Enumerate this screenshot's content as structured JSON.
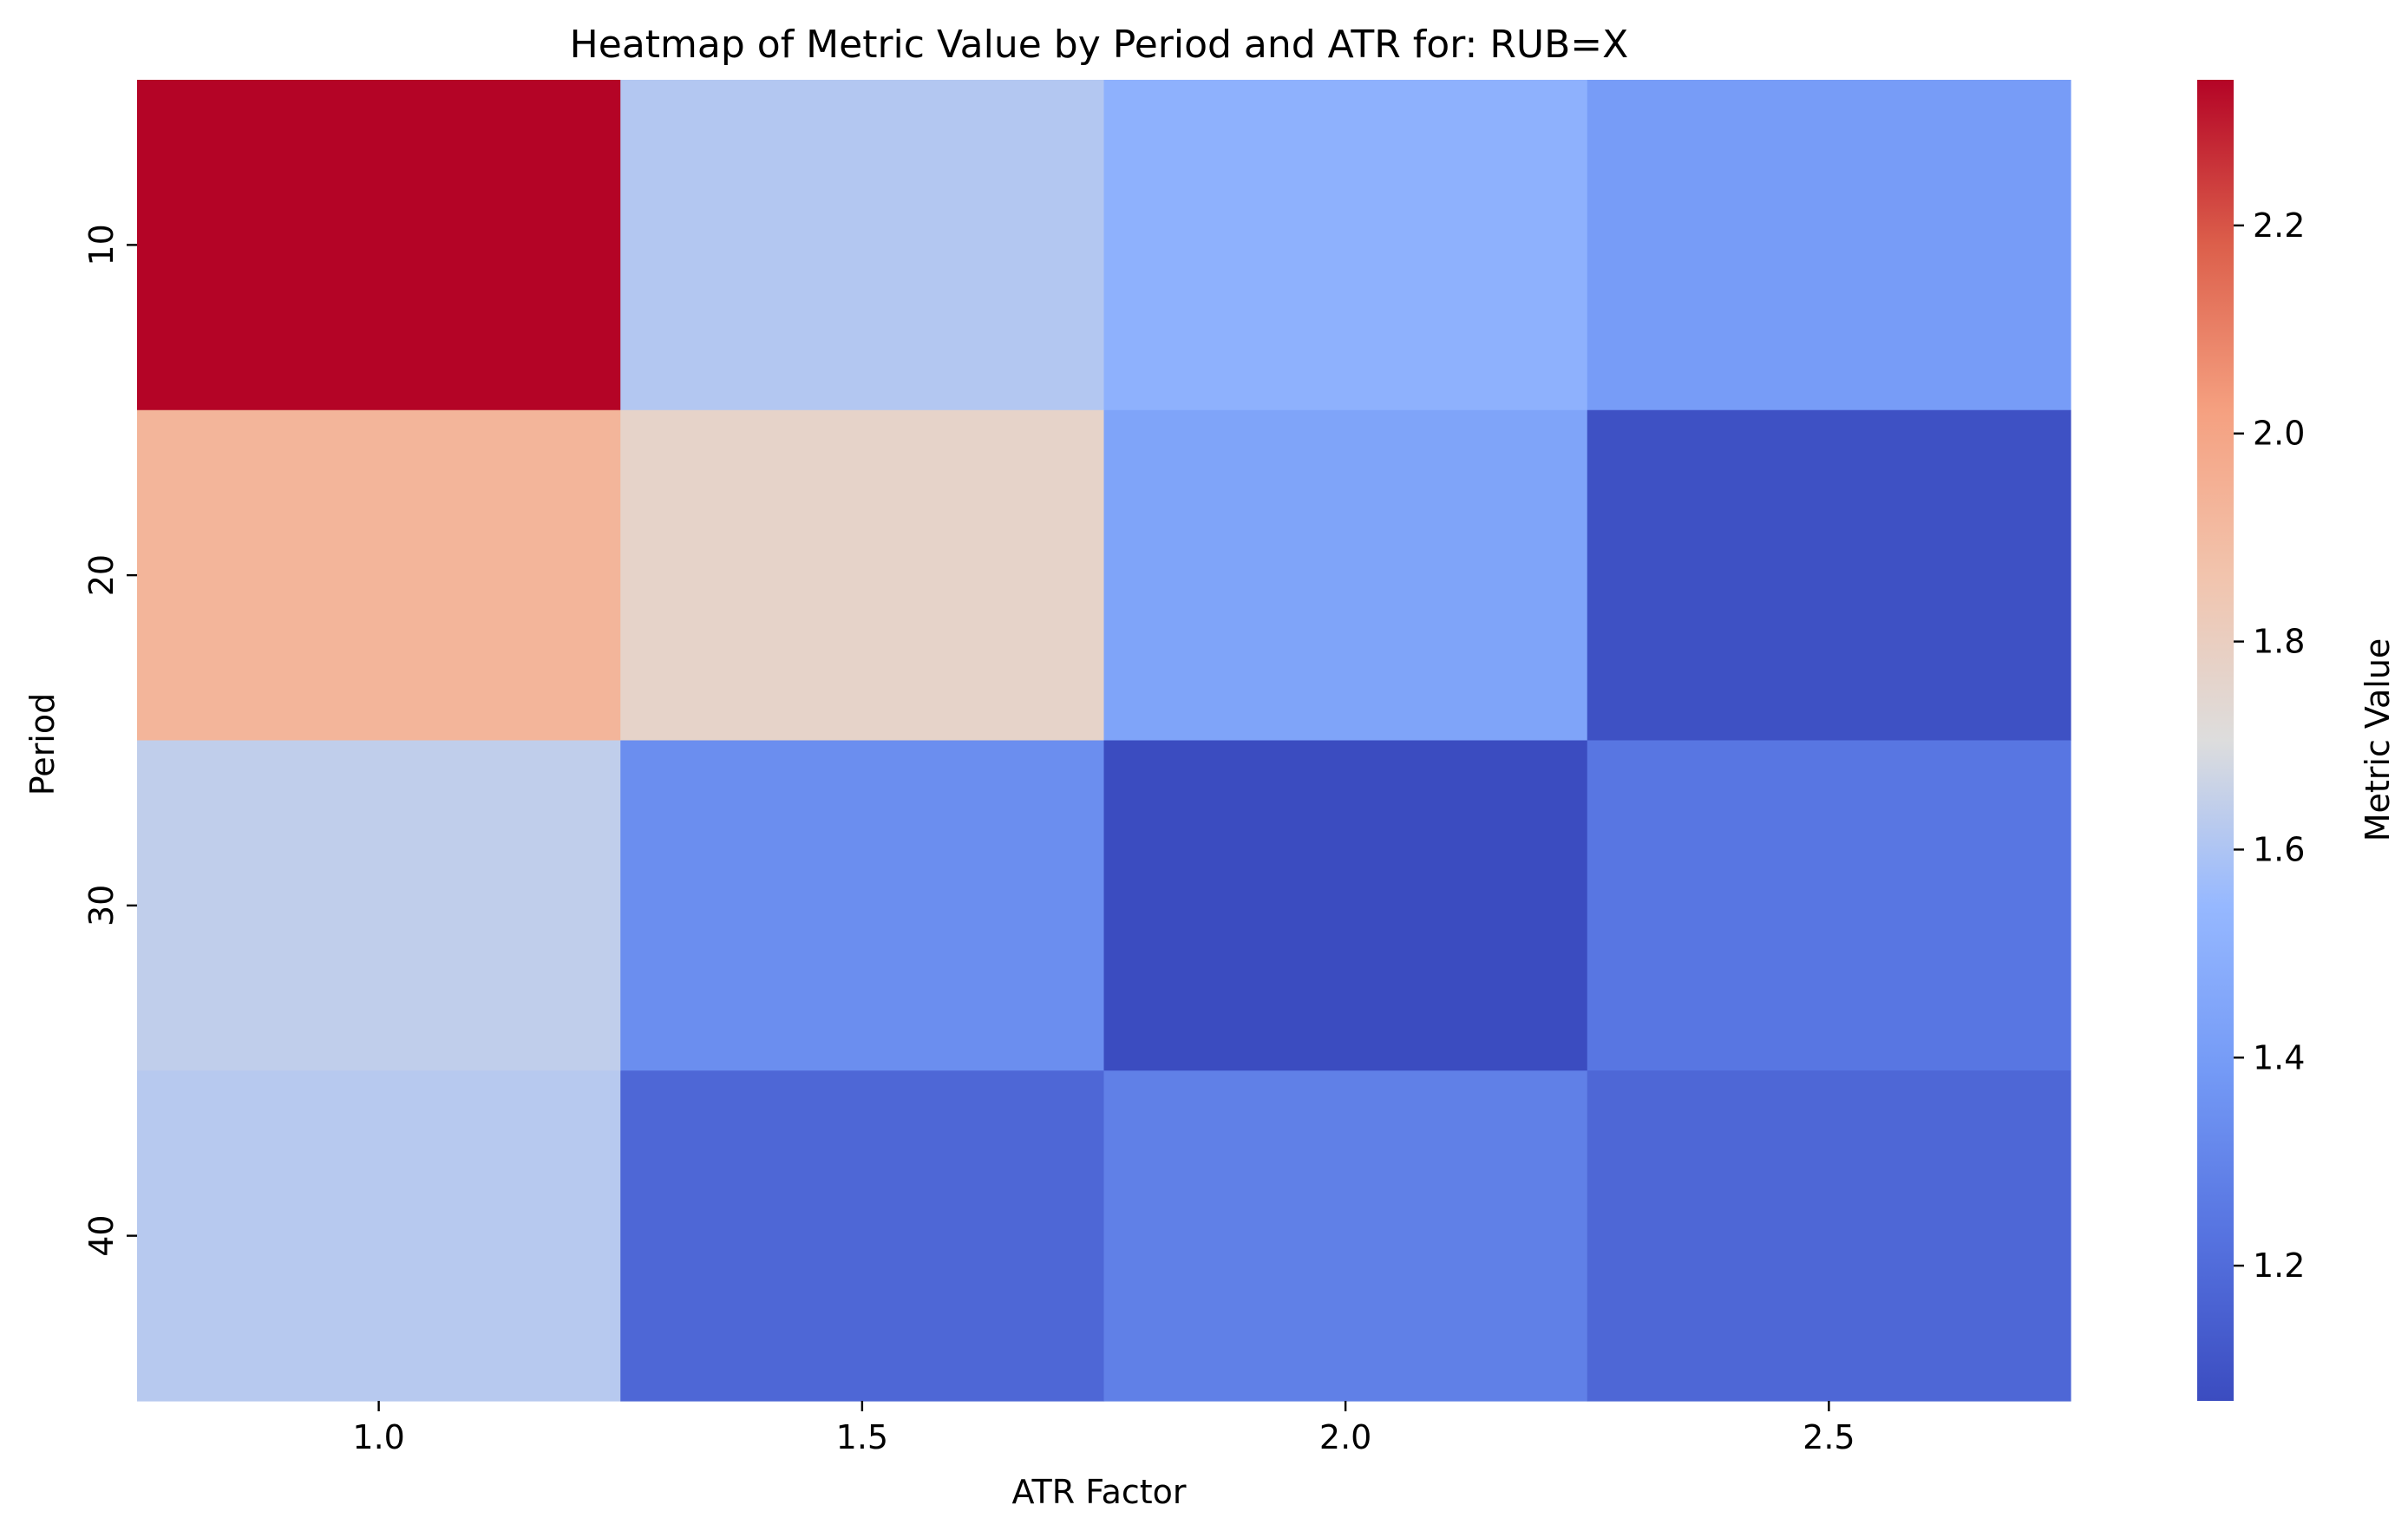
{
  "chart_data": {
    "type": "heatmap",
    "title": "Heatmap of Metric Value by Period and ATR for: RUB=X",
    "xlabel": "ATR Factor",
    "ylabel": "Period",
    "x_categories": [
      "1.0",
      "1.5",
      "2.0",
      "2.5"
    ],
    "y_categories": [
      "10",
      "20",
      "30",
      "40"
    ],
    "values": [
      [
        2.34,
        1.61,
        1.51,
        1.4
      ],
      [
        1.93,
        1.77,
        1.44,
        1.09
      ],
      [
        1.64,
        1.34,
        1.07,
        1.24
      ],
      [
        1.62,
        1.18,
        1.28,
        1.18
      ]
    ],
    "colormap": "coolwarm",
    "colorbar": {
      "label": "Metric Value",
      "range": [
        1.07,
        2.34
      ],
      "ticks": [
        "1.2",
        "1.4",
        "1.6",
        "1.8",
        "2.0",
        "2.2"
      ]
    },
    "grid": false,
    "legend": "colorbar-right"
  }
}
